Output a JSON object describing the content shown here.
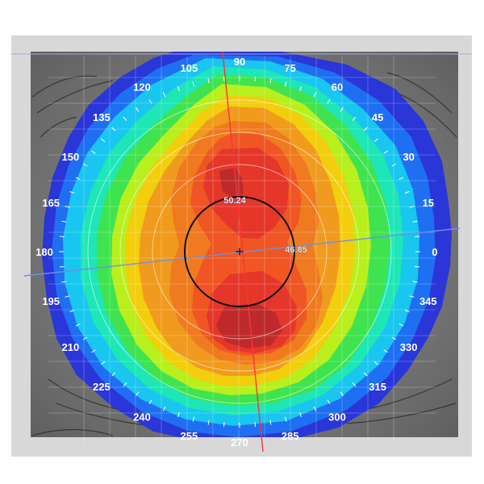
{
  "viewer": {
    "axis_labels": [
      "0",
      "15",
      "30",
      "45",
      "60",
      "75",
      "90",
      "105",
      "120",
      "135",
      "150",
      "165",
      "180",
      "195",
      "210",
      "225",
      "240",
      "255",
      "270",
      "285",
      "300",
      "315",
      "330",
      "345"
    ],
    "steep_k": "50.24",
    "flat_k": "46.85",
    "center_mark": "+"
  },
  "colors": {
    "background_panel": "#d8d8d8",
    "skin": "#6f6f6f",
    "outer_blue": "#2a36d8",
    "blue": "#1f6ff2",
    "cyan": "#19c6ef",
    "aqua_green": "#1ee6b7",
    "green": "#3fe34f",
    "yellow_green": "#b8ef1c",
    "yellow": "#f2ce0d",
    "orange": "#f09b1e",
    "dark_orange": "#f07a1f",
    "red_orange": "#ef5624",
    "red": "#e5362a",
    "dark_red": "#be2a2b",
    "steep_axis": "#ff3333",
    "flat_axis": "#6f8fe6"
  }
}
